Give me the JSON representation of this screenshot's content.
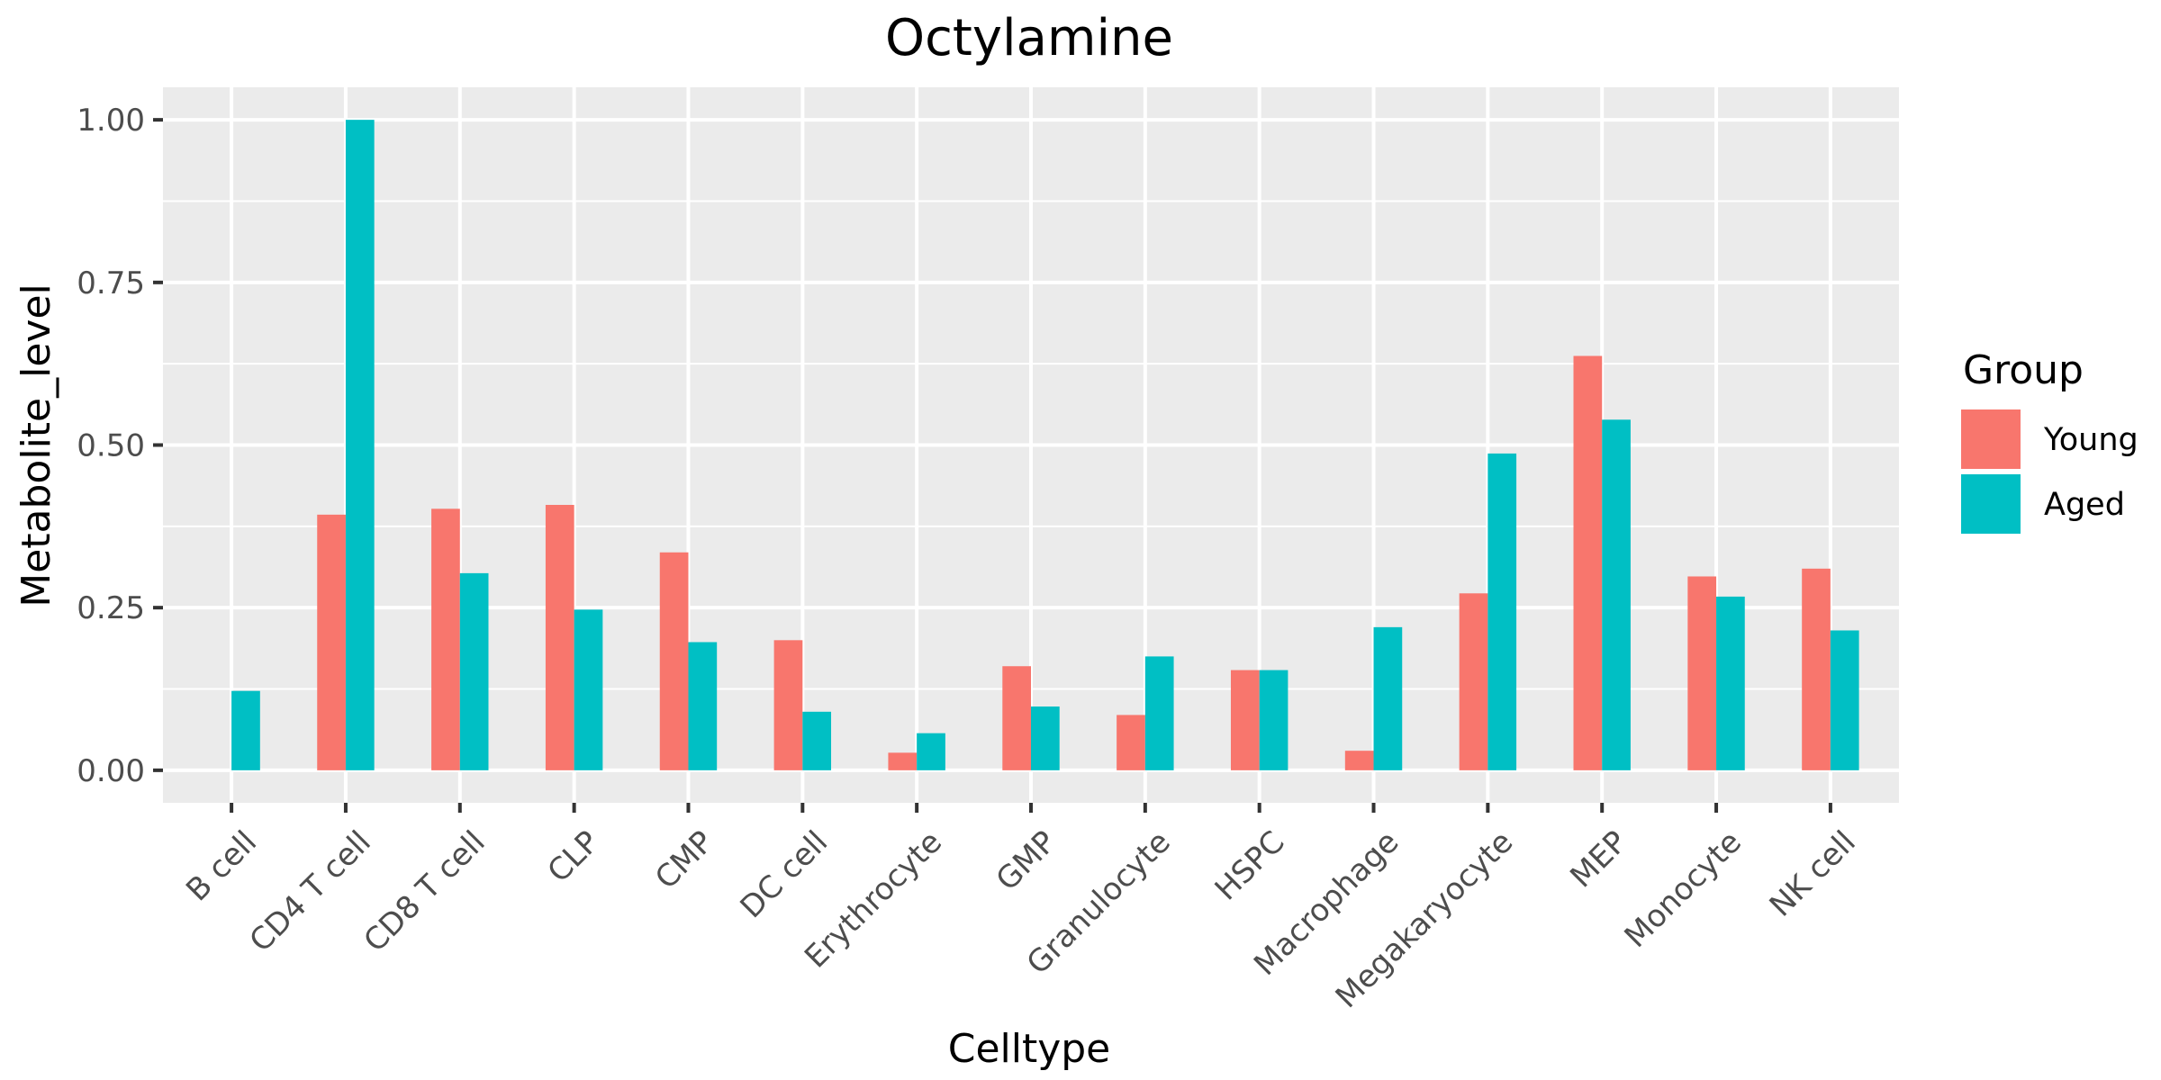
{
  "chart_data": {
    "type": "bar",
    "title": "Octylamine",
    "xlabel": "Celltype",
    "ylabel": "Metabolite_level",
    "ylim": [
      -0.05,
      1.05
    ],
    "yticks": [
      0.0,
      0.25,
      0.5,
      0.75,
      1.0
    ],
    "ytick_labels": [
      "0.00",
      "0.25",
      "0.50",
      "0.75",
      "1.00"
    ],
    "categories": [
      "B cell",
      "CD4 T cell",
      "CD8 T cell",
      "CLP",
      "CMP",
      "DC cell",
      "Erythrocyte",
      "GMP",
      "Granulocyte",
      "HSPC",
      "Macrophage",
      "Megakaryocyte",
      "MEP",
      "Monocyte",
      "NK cell"
    ],
    "series": [
      {
        "name": "Young",
        "color": "#F8766D",
        "values": [
          null,
          0.393,
          0.402,
          0.408,
          0.335,
          0.2,
          0.027,
          0.16,
          0.085,
          0.154,
          0.03,
          0.272,
          0.637,
          0.298,
          0.31
        ]
      },
      {
        "name": "Aged",
        "color": "#00BFC4",
        "values": [
          0.122,
          1.0,
          0.303,
          0.247,
          0.197,
          0.09,
          0.057,
          0.098,
          0.175,
          0.154,
          0.22,
          0.487,
          0.539,
          0.267,
          0.215
        ]
      }
    ],
    "legend": {
      "title": "Group",
      "position": "right"
    },
    "grid": true,
    "panel_background": "#EBEBEB",
    "grid_color": "#FFFFFF"
  }
}
